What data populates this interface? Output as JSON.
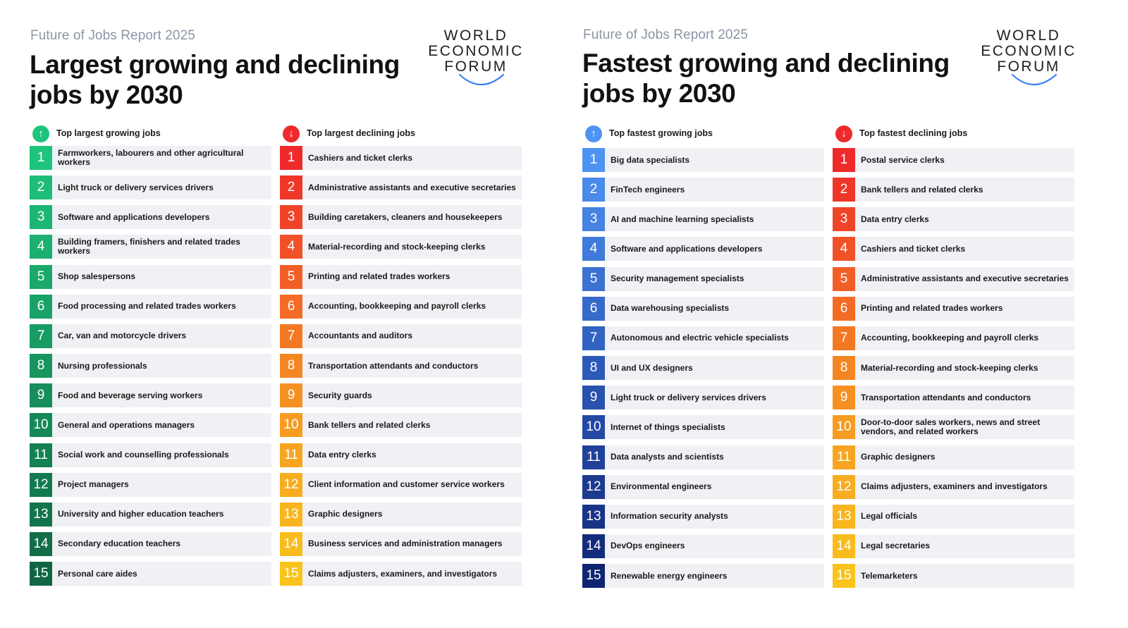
{
  "panels": [
    {
      "kicker": "Future of Jobs Report 2025",
      "title": "Largest growing and declining jobs by 2030",
      "logo": [
        "WORLD",
        "ECONOMIC",
        "FORUM"
      ],
      "columns": [
        {
          "label": "Top largest growing jobs",
          "icon": "arrow-up-icon",
          "colors": [
            "#1ec47b",
            "#1dbd77",
            "#1cb673",
            "#1bb06f",
            "#1aa96b",
            "#19a267",
            "#189c63",
            "#17955f",
            "#168e5b",
            "#158857",
            "#148153",
            "#137a4f",
            "#12744b",
            "#116d47",
            "#106643"
          ],
          "items": [
            "Farmworkers, labourers and other agricultural workers",
            "Light truck or delivery services drivers",
            "Software and applications developers",
            "Building framers, finishers and related trades workers",
            "Shop salespersons",
            "Food processing and related trades workers",
            "Car, van and motorcycle drivers",
            "Nursing professionals",
            "Food and beverage serving workers",
            "General and operations managers",
            "Social work and counselling professionals",
            "Project managers",
            "University and higher education teachers",
            "Secondary education teachers",
            "Personal care aides"
          ]
        },
        {
          "label": "Top largest declining jobs",
          "icon": "arrow-down-icon",
          "colors": [
            "#ee2a2a",
            "#ef3729",
            "#f04428",
            "#f15127",
            "#f25e26",
            "#f36b25",
            "#f37824",
            "#f48523",
            "#f59122",
            "#f69c21",
            "#f7a520",
            "#f7ad1f",
            "#f8b51e",
            "#f8bc1d",
            "#f9c31c"
          ],
          "items": [
            "Cashiers and ticket clerks",
            "Administrative assistants and executive secretaries",
            "Building caretakers, cleaners and housekeepers",
            "Material-recording and stock-keeping clerks",
            "Printing and related trades workers",
            "Accounting, bookkeeping and payroll clerks",
            "Accountants and auditors",
            "Transportation attendants and conductors",
            "Security guards",
            "Bank tellers and related clerks",
            "Data entry clerks",
            "Client information and customer service workers",
            "Graphic designers",
            "Business services and administration managers",
            "Claims adjusters, examiners, and investigators"
          ]
        }
      ]
    },
    {
      "kicker": "Future of Jobs Report 2025",
      "title": "Fastest growing and declining jobs by 2030",
      "logo": [
        "WORLD",
        "ECONOMIC",
        "FORUM"
      ],
      "columns": [
        {
          "label": "Top fastest growing jobs",
          "icon": "arrow-up-icon",
          "colors": [
            "#4f93f2",
            "#4a8aea",
            "#4582e2",
            "#407ada",
            "#3b72d2",
            "#366aca",
            "#3262c2",
            "#2d59b8",
            "#2951ae",
            "#2449a4",
            "#20419a",
            "#1c3a90",
            "#183386",
            "#142c7c",
            "#102572"
          ],
          "items": [
            "Big data specialists",
            "FinTech engineers",
            "AI and machine learning specialists",
            "Software and applications developers",
            "Security management specialists",
            "Data warehousing specialists",
            "Autonomous and electric vehicle specialists",
            "UI and UX designers",
            "Light truck or delivery services drivers",
            "Internet of things specialists",
            "Data analysts and scientists",
            "Environmental engineers",
            "Information security analysts",
            "DevOps engineers",
            "Renewable energy engineers"
          ]
        },
        {
          "label": "Top fastest declining jobs",
          "icon": "arrow-down-icon",
          "colors": [
            "#ee2a2a",
            "#ef3729",
            "#f04428",
            "#f15127",
            "#f25e26",
            "#f36b25",
            "#f37824",
            "#f48523",
            "#f59122",
            "#f69c21",
            "#f7a520",
            "#f7ad1f",
            "#f8b51e",
            "#f8bc1d",
            "#f9c31c"
          ],
          "items": [
            "Postal service clerks",
            "Bank tellers and related clerks",
            "Data entry clerks",
            "Cashiers and ticket clerks",
            "Administrative assistants and executive secretaries",
            "Printing and related trades workers",
            "Accounting, bookkeeping and payroll clerks",
            "Material-recording and stock-keeping clerks",
            "Transportation attendants and conductors",
            "Door-to-door sales workers, news and street vendors, and related workers",
            "Graphic designers",
            "Claims adjusters, examiners and investigators",
            "Legal officials",
            "Legal secretaries",
            "Telemarketers"
          ]
        }
      ]
    }
  ],
  "theme": {
    "up_icon_left": "#1ec47b",
    "up_icon_right": "#4f93f2",
    "down_icon": "#ee2a2a",
    "logo_arc": "#3b82f6"
  }
}
